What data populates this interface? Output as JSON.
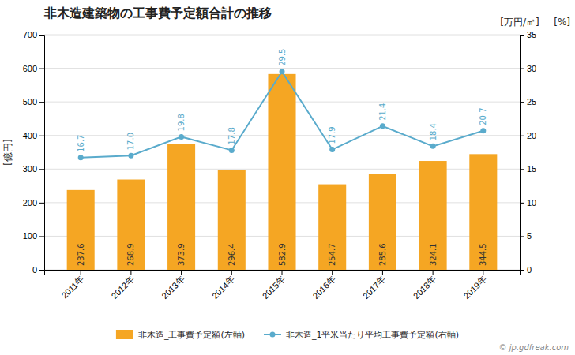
{
  "chart_data": {
    "type": "bar",
    "title": "非木造建築物の工事費予定額合計の推移",
    "categories": [
      "2011年",
      "2012年",
      "2013年",
      "2014年",
      "2015年",
      "2016年",
      "2017年",
      "2018年",
      "2019年"
    ],
    "series": [
      {
        "name": "非木造_工事費予定額(左軸)",
        "type": "bar",
        "color": "#f5a623",
        "values": [
          237.6,
          268.9,
          373.9,
          296.4,
          582.9,
          254.7,
          285.6,
          324.1,
          344.5
        ]
      },
      {
        "name": "非木造_1平米当たり平均工事費予定額(右軸)",
        "type": "line",
        "axis": "y2",
        "color": "#5aabcc",
        "marker": "circle",
        "values": [
          16.7,
          17.0,
          19.8,
          17.8,
          29.5,
          17.9,
          21.4,
          18.4,
          20.7
        ],
        "value_labels": [
          "16.7",
          "17.0",
          "19.8",
          "17.8",
          "29.5",
          "17.9",
          "21.4",
          "18.4",
          "20.7"
        ]
      }
    ],
    "ylabel": "[億円]",
    "y2label": "[万円/㎡]",
    "ylim": [
      0,
      700
    ],
    "yticks": [
      0,
      100,
      200,
      300,
      400,
      500,
      600,
      700
    ],
    "y2lim": [
      0,
      35
    ],
    "y2ticks": [
      0,
      5,
      10,
      15,
      20,
      25,
      30,
      35
    ],
    "grid": true,
    "data_labels": true,
    "legend": "bottom",
    "annotations": [
      "[%]",
      "© jp.gdfreak.com"
    ]
  }
}
